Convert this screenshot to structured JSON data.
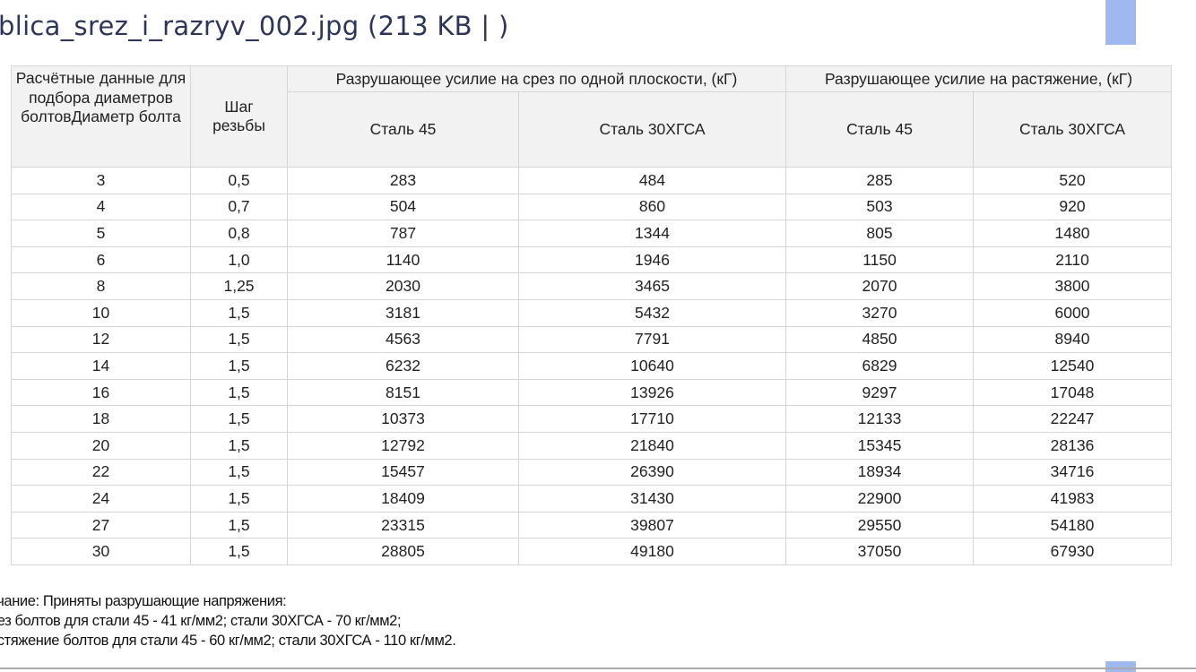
{
  "title": "blica_srez_i_razryv_002.jpg (213 KB | )",
  "accent_color": "#a0b8f0",
  "table": {
    "col1_header": "Расчётные данные для подбора диаметров болтовДиаметр болта",
    "col2_header": "Шаг резьбы",
    "group1": "Разрушающее усилие на срез по одной плоскости, (кГ)",
    "group2": "Разрушающее усилие на растяжение, (кГ)",
    "sub": [
      "Сталь 45",
      "Сталь 30ХГСА",
      "Сталь 45",
      "Сталь 30ХГСА"
    ],
    "rows": [
      [
        "3",
        "0,5",
        "283",
        "484",
        "285",
        "520"
      ],
      [
        "4",
        "0,7",
        "504",
        "860",
        "503",
        "920"
      ],
      [
        "5",
        "0,8",
        "787",
        "1344",
        "805",
        "1480"
      ],
      [
        "6",
        "1,0",
        "1140",
        "1946",
        "1150",
        "2110"
      ],
      [
        "8",
        "1,25",
        "2030",
        "3465",
        "2070",
        "3800"
      ],
      [
        "10",
        "1,5",
        "3181",
        "5432",
        "3270",
        "6000"
      ],
      [
        "12",
        "1,5",
        "4563",
        "7791",
        "4850",
        "8940"
      ],
      [
        "14",
        "1,5",
        "6232",
        "10640",
        "6829",
        "12540"
      ],
      [
        "16",
        "1,5",
        "8151",
        "13926",
        "9297",
        "17048"
      ],
      [
        "18",
        "1,5",
        "10373",
        "17710",
        "12133",
        "22247"
      ],
      [
        "20",
        "1,5",
        "12792",
        "21840",
        "15345",
        "28136"
      ],
      [
        "22",
        "1,5",
        "15457",
        "26390",
        "18934",
        "34716"
      ],
      [
        "24",
        "1,5",
        "18409",
        "31430",
        "22900",
        "41983"
      ],
      [
        "27",
        "1,5",
        "23315",
        "39807",
        "29550",
        "54180"
      ],
      [
        "30",
        "1,5",
        "28805",
        "49180",
        "37050",
        "67930"
      ]
    ]
  },
  "note": [
    "ечание: Приняты разрушающие напряжения:",
    "рез болтов для стали 45 - 41 кг/мм2; стали 30ХГСА - 70 кг/мм2;",
    "астяжение болтов для стали 45 - 60 кг/мм2; стали 30ХГСА - 110 кг/мм2."
  ]
}
